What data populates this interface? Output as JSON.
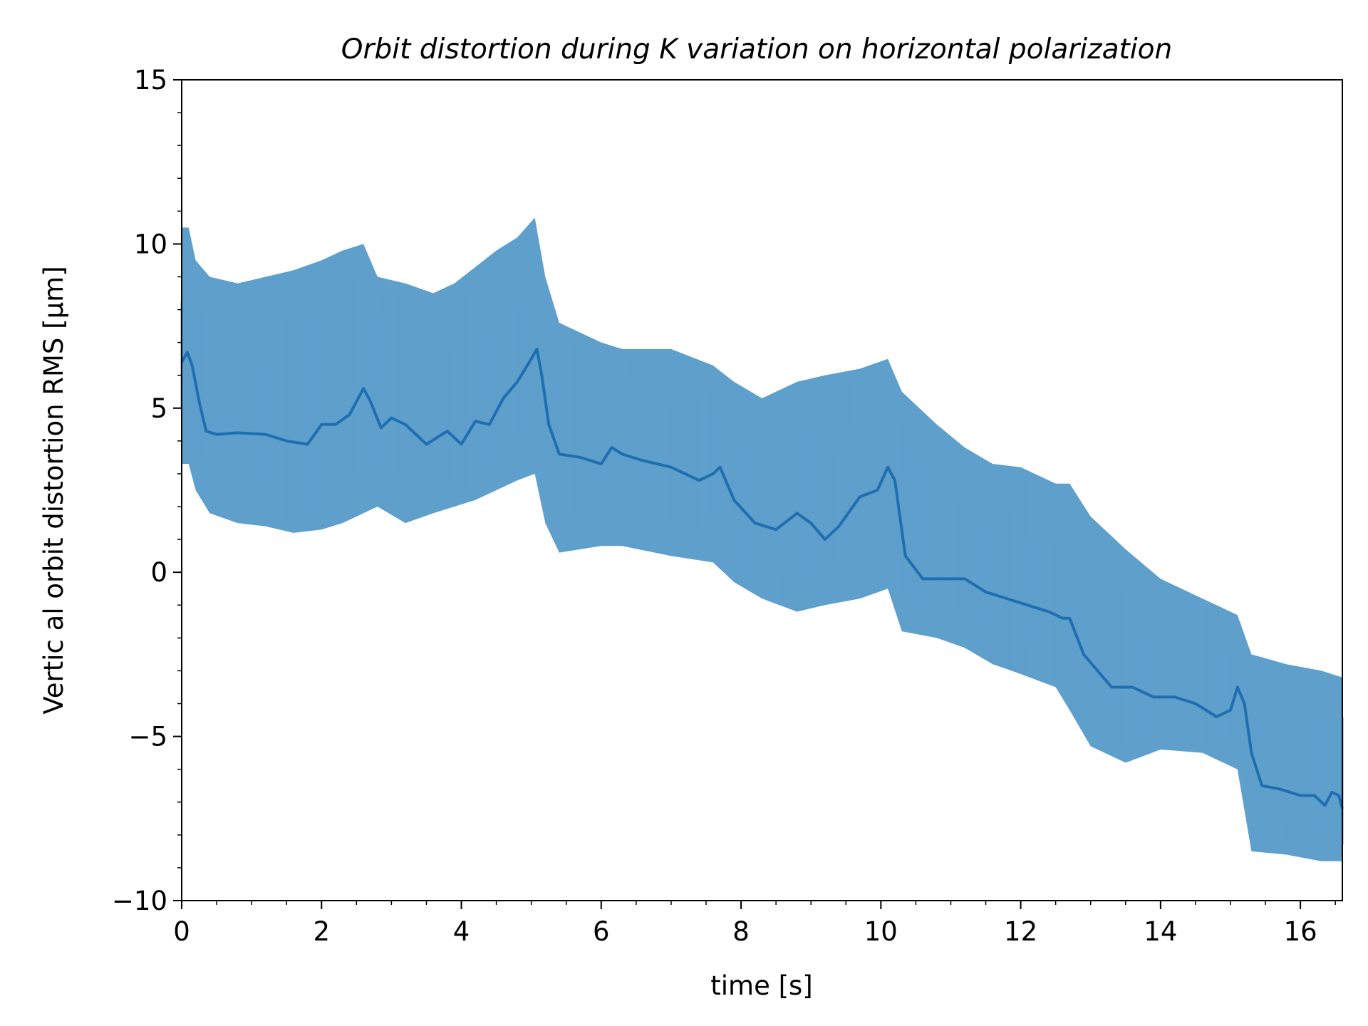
{
  "chart_data": {
    "type": "line",
    "title": "Orbit distortion during K variation on horizontal polarization",
    "xlabel": "time [s]",
    "ylabel": "Vertic al orbit distortion RMS [μm]",
    "xlim": [
      0,
      16.6
    ],
    "ylim": [
      -10,
      15
    ],
    "xticks": [
      0,
      2,
      4,
      6,
      8,
      10,
      12,
      14,
      16
    ],
    "yticks": [
      -10,
      -5,
      0,
      5,
      10,
      15
    ],
    "xtick_labels": [
      "0",
      "2",
      "4",
      "6",
      "8",
      "10",
      "12",
      "14",
      "16"
    ],
    "ytick_labels": [
      "−10",
      "−5",
      "0",
      "5",
      "10",
      "15"
    ],
    "grid": false,
    "colors": {
      "raw": "#5f9fcc",
      "smoothed": "#1f6fb0"
    },
    "series": [
      {
        "kind": "raw-signal-envelope",
        "x": [
          0,
          0.1,
          0.2,
          0.4,
          0.8,
          1.2,
          1.6,
          2.0,
          2.3,
          2.6,
          2.8,
          3.2,
          3.6,
          3.9,
          4.2,
          4.5,
          4.8,
          5.05,
          5.2,
          5.4,
          6.0,
          6.3,
          7.0,
          7.6,
          7.9,
          8.3,
          8.8,
          9.2,
          9.7,
          10.1,
          10.3,
          10.8,
          11.2,
          11.6,
          12.0,
          12.5,
          12.7,
          13.0,
          13.5,
          14.0,
          14.6,
          15.1,
          15.3,
          15.8,
          16.3,
          16.6
        ],
        "upper": [
          10.5,
          10.5,
          9.5,
          9.0,
          8.8,
          9.0,
          9.2,
          9.5,
          9.8,
          10.0,
          9.0,
          8.8,
          8.5,
          8.8,
          9.3,
          9.8,
          10.2,
          10.8,
          9.0,
          7.6,
          7.0,
          6.8,
          6.8,
          6.3,
          5.8,
          5.3,
          5.8,
          6.0,
          6.2,
          6.5,
          5.5,
          4.5,
          3.8,
          3.3,
          3.2,
          2.7,
          2.7,
          1.7,
          0.7,
          -0.2,
          -0.8,
          -1.3,
          -2.5,
          -2.8,
          -3.0,
          -3.2
        ],
        "lower": [
          3.3,
          3.3,
          2.5,
          1.8,
          1.5,
          1.4,
          1.2,
          1.3,
          1.5,
          1.8,
          2.0,
          1.5,
          1.8,
          2.0,
          2.2,
          2.5,
          2.8,
          3.0,
          1.5,
          0.6,
          0.8,
          0.8,
          0.5,
          0.3,
          -0.3,
          -0.8,
          -1.2,
          -1.0,
          -0.8,
          -0.5,
          -1.8,
          -2.0,
          -2.3,
          -2.8,
          -3.1,
          -3.5,
          -4.2,
          -5.3,
          -5.8,
          -5.4,
          -5.5,
          -6.0,
          -8.5,
          -8.6,
          -8.8,
          -8.8
        ]
      },
      {
        "kind": "smoothed",
        "x": [
          0,
          0.08,
          0.15,
          0.25,
          0.35,
          0.5,
          0.8,
          1.2,
          1.5,
          1.8,
          2.0,
          2.2,
          2.4,
          2.5,
          2.6,
          2.7,
          2.85,
          3.0,
          3.2,
          3.5,
          3.8,
          4.0,
          4.2,
          4.4,
          4.6,
          4.8,
          5.0,
          5.08,
          5.15,
          5.25,
          5.4,
          5.7,
          6.0,
          6.15,
          6.3,
          6.6,
          7.0,
          7.4,
          7.6,
          7.7,
          7.9,
          8.2,
          8.5,
          8.8,
          9.0,
          9.2,
          9.4,
          9.7,
          9.95,
          10.1,
          10.2,
          10.35,
          10.6,
          10.9,
          11.2,
          11.5,
          11.8,
          12.1,
          12.4,
          12.6,
          12.7,
          12.9,
          13.1,
          13.3,
          13.6,
          13.9,
          14.2,
          14.5,
          14.8,
          15.0,
          15.1,
          15.2,
          15.3,
          15.45,
          15.7,
          16.0,
          16.2,
          16.35,
          16.45,
          16.55,
          16.6
        ],
        "y": [
          6.4,
          6.7,
          6.3,
          5.2,
          4.3,
          4.2,
          4.25,
          4.2,
          4.0,
          3.9,
          4.5,
          4.5,
          4.8,
          5.2,
          5.6,
          5.2,
          4.4,
          4.7,
          4.5,
          3.9,
          4.3,
          3.9,
          4.6,
          4.5,
          5.3,
          5.8,
          6.5,
          6.8,
          6.0,
          4.5,
          3.6,
          3.5,
          3.3,
          3.8,
          3.6,
          3.4,
          3.2,
          2.8,
          3.0,
          3.2,
          2.2,
          1.5,
          1.3,
          1.8,
          1.5,
          1.0,
          1.4,
          2.3,
          2.5,
          3.2,
          2.8,
          0.5,
          -0.2,
          -0.2,
          -0.2,
          -0.6,
          -0.8,
          -1.0,
          -1.2,
          -1.4,
          -1.4,
          -2.5,
          -3.0,
          -3.5,
          -3.5,
          -3.8,
          -3.8,
          -4.0,
          -4.4,
          -4.2,
          -3.5,
          -4.0,
          -5.5,
          -6.5,
          -6.6,
          -6.8,
          -6.8,
          -7.1,
          -6.7,
          -6.8,
          -7.2
        ]
      }
    ]
  }
}
